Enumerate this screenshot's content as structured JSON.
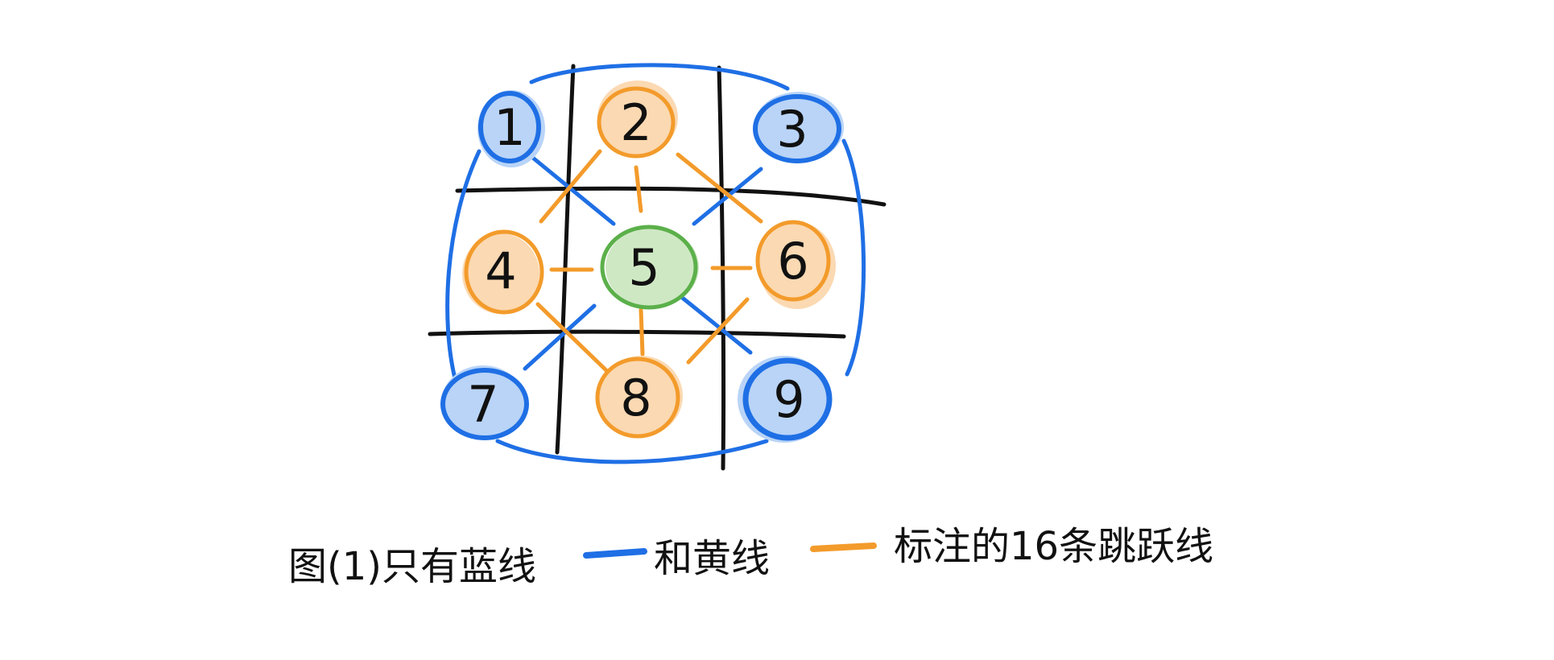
{
  "colors": {
    "background": "#ffffff",
    "grid": "#111111",
    "blue_stroke": "#1f6fe5",
    "blue_fill": "#b9d4f7",
    "orange_stroke": "#f39b2b",
    "orange_fill": "#fbd9b2",
    "green_stroke": "#5bb04a",
    "green_fill": "#cfe8c4",
    "text": "#111111"
  },
  "nodes": [
    {
      "label": "1",
      "group": "blue"
    },
    {
      "label": "2",
      "group": "orange"
    },
    {
      "label": "3",
      "group": "blue"
    },
    {
      "label": "4",
      "group": "orange"
    },
    {
      "label": "5",
      "group": "green"
    },
    {
      "label": "6",
      "group": "orange"
    },
    {
      "label": "7",
      "group": "blue"
    },
    {
      "label": "8",
      "group": "orange"
    },
    {
      "label": "9",
      "group": "blue"
    }
  ],
  "blue_lines": [
    [
      "1",
      "3"
    ],
    [
      "3",
      "9"
    ],
    [
      "9",
      "7"
    ],
    [
      "7",
      "1"
    ],
    [
      "1",
      "5"
    ],
    [
      "3",
      "5"
    ],
    [
      "7",
      "5"
    ],
    [
      "9",
      "5"
    ]
  ],
  "orange_lines": [
    [
      "2",
      "5"
    ],
    [
      "4",
      "5"
    ],
    [
      "6",
      "5"
    ],
    [
      "8",
      "5"
    ],
    [
      "2",
      "4"
    ],
    [
      "2",
      "6"
    ],
    [
      "4",
      "8"
    ],
    [
      "6",
      "8"
    ]
  ],
  "caption": {
    "text_part1": "图(1)只有蓝线",
    "text_part2": "和黄线",
    "text_part3": "标注的16条跳跃线"
  }
}
